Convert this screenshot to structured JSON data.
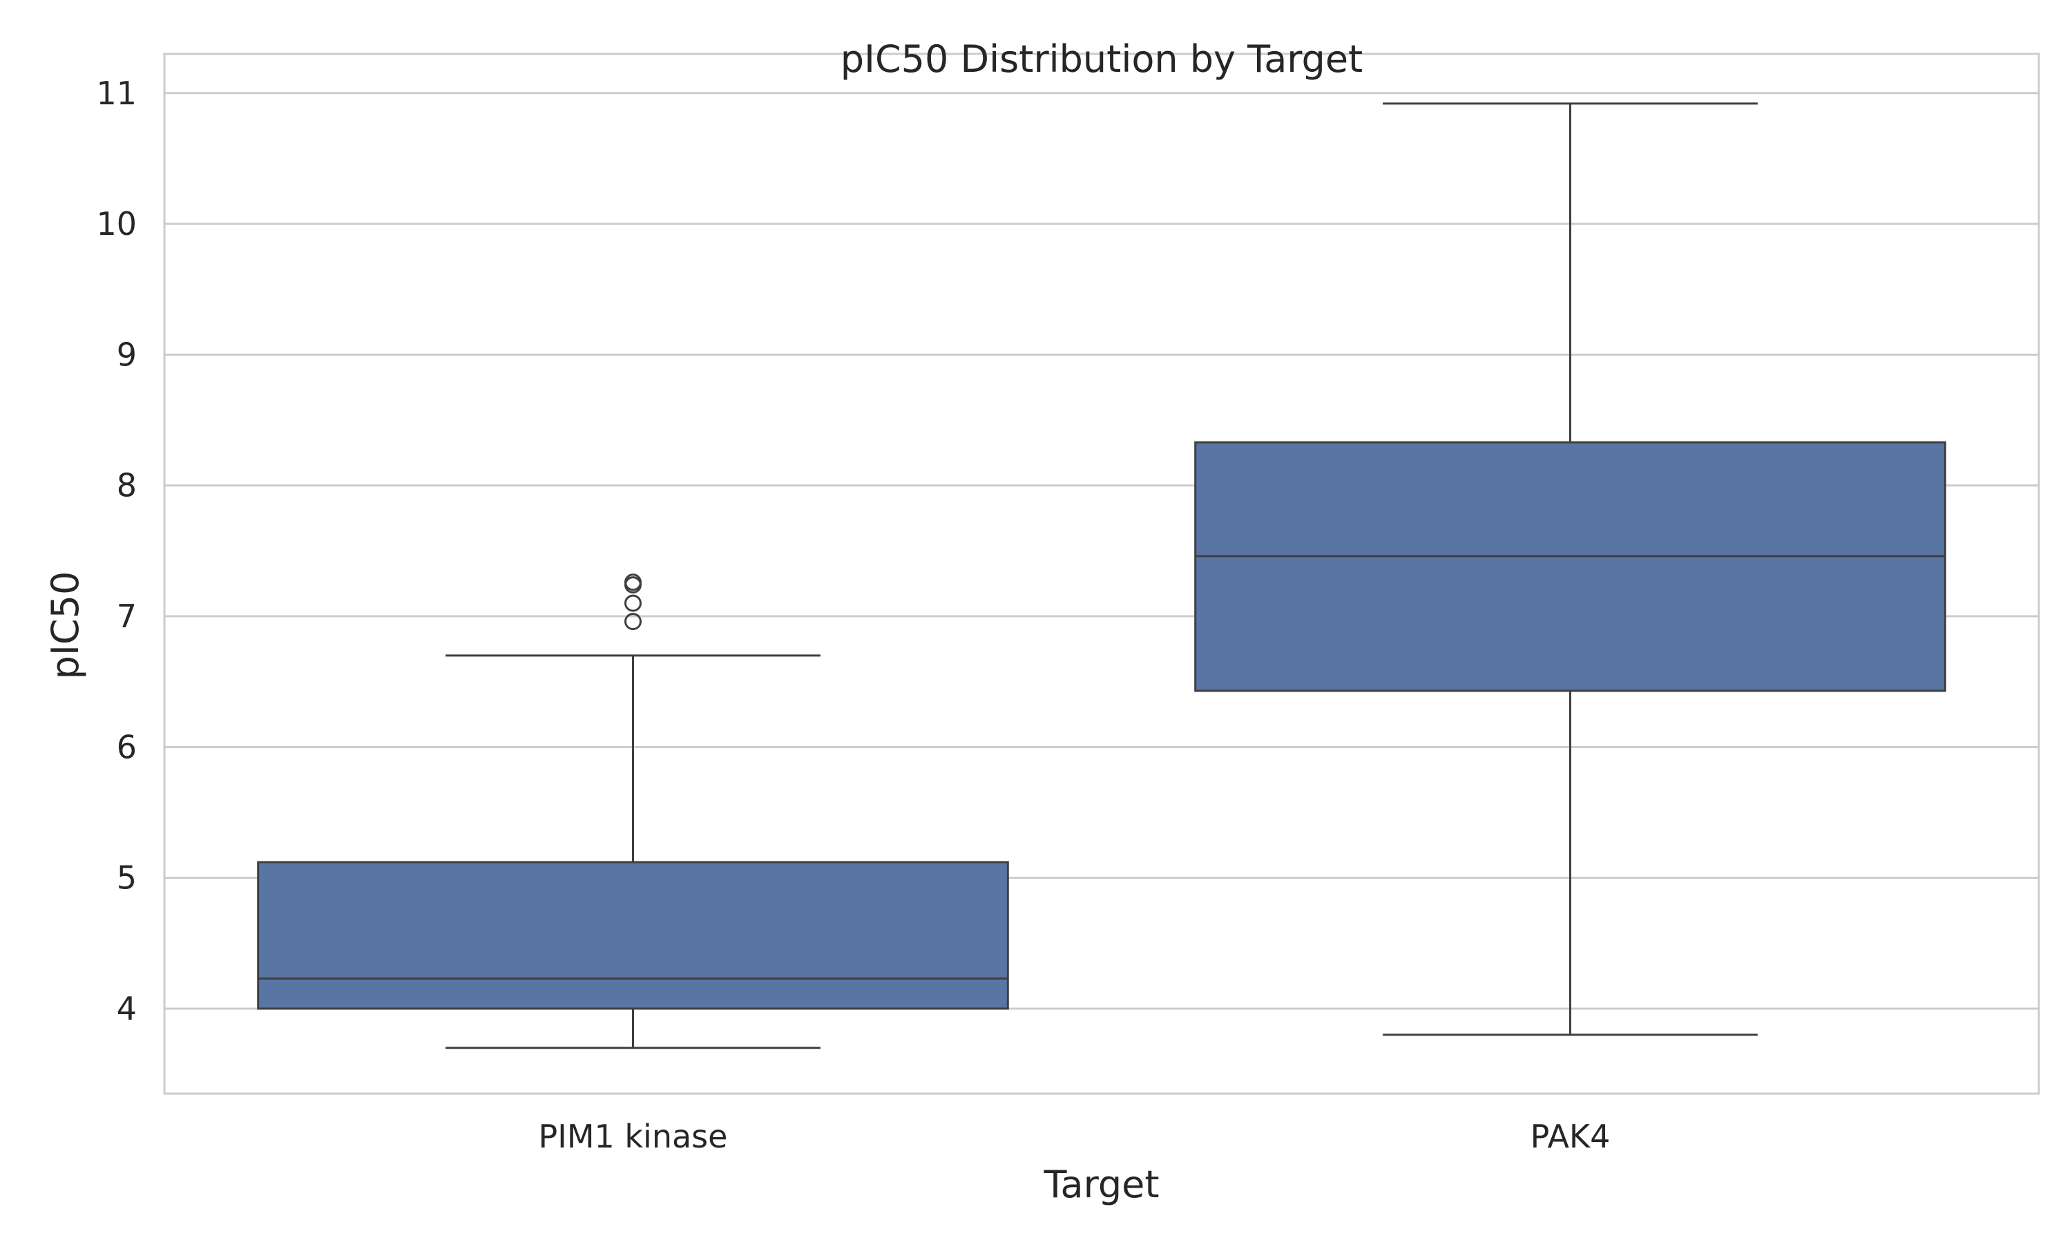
{
  "chart_data": {
    "type": "box",
    "title": "pIC50 Distribution by Target",
    "xlabel": "Target",
    "ylabel": "pIC50",
    "categories": [
      "PIM1 kinase",
      "PAK4"
    ],
    "ylim": [
      3.35,
      11.3
    ],
    "yticks": [
      4,
      5,
      6,
      7,
      8,
      9,
      10,
      11
    ],
    "grid": true,
    "legend": "none",
    "colors": {
      "box_fill": "#5975a4",
      "line": "#3f3f3f",
      "grid": "#cccccc",
      "frame": "#cccccc"
    },
    "boxes": [
      {
        "category": "PIM1 kinase",
        "whisker_low": 3.7,
        "q1": 4.0,
        "median": 4.23,
        "q3": 5.12,
        "whisker_high": 6.7,
        "outliers": [
          6.96,
          7.1,
          7.24,
          7.26
        ]
      },
      {
        "category": "PAK4",
        "whisker_low": 3.8,
        "q1": 6.43,
        "median": 7.46,
        "q3": 8.33,
        "whisker_high": 10.92,
        "outliers": []
      }
    ]
  }
}
